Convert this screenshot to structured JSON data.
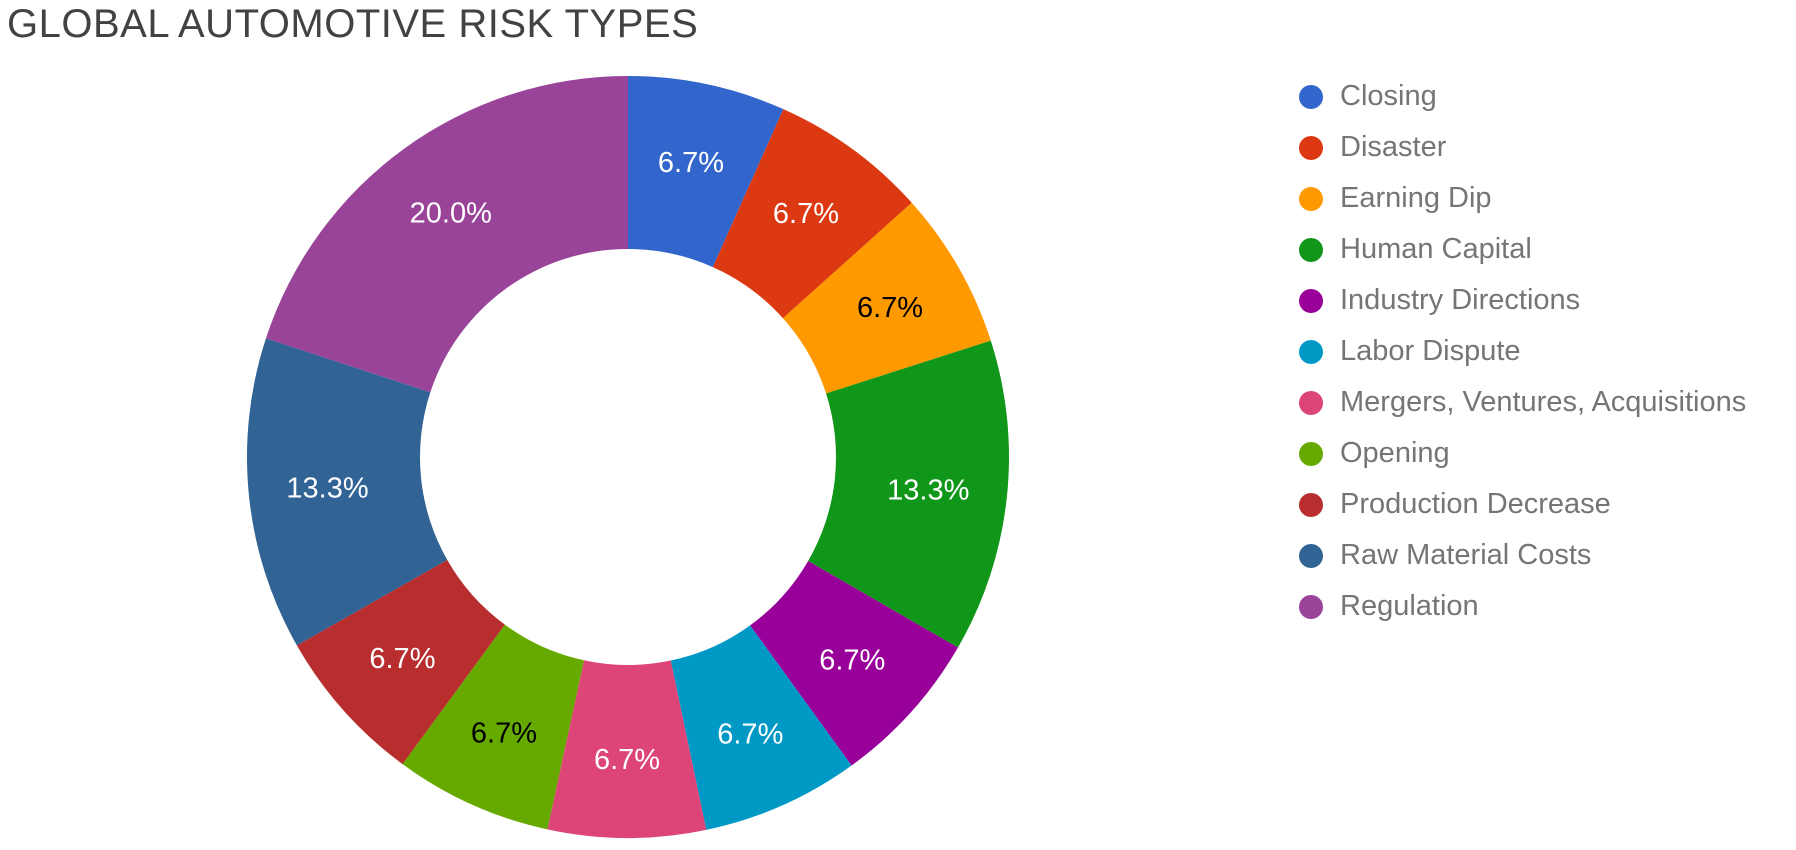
{
  "title": "GLOBAL AUTOMOTIVE RISK TYPES",
  "colors": {
    "background": "#ffffff",
    "title_text": "#424242",
    "legend_text": "#757575"
  },
  "chart_data": {
    "type": "pie",
    "donut": true,
    "pie_hole": 0.55,
    "title": "GLOBAL AUTOMOTIVE RISK TYPES",
    "legend_position": "right",
    "legend_marker": "circle",
    "start_angle_deg": 0,
    "direction": "clockwise",
    "slices": [
      {
        "label": "Closing",
        "percent": 6.7,
        "display": "6.7%",
        "color": "#3366CC",
        "text_color": "#ffffff"
      },
      {
        "label": "Disaster",
        "percent": 6.7,
        "display": "6.7%",
        "color": "#DC3912",
        "text_color": "#ffffff"
      },
      {
        "label": "Earning Dip",
        "percent": 6.7,
        "display": "6.7%",
        "color": "#FF9900",
        "text_color": "#000000"
      },
      {
        "label": "Human Capital",
        "percent": 13.3,
        "display": "13.3%",
        "color": "#109618",
        "text_color": "#ffffff"
      },
      {
        "label": "Industry Directions",
        "percent": 6.7,
        "display": "6.7%",
        "color": "#990099",
        "text_color": "#ffffff"
      },
      {
        "label": "Labor Dispute",
        "percent": 6.7,
        "display": "6.7%",
        "color": "#0099C6",
        "text_color": "#ffffff"
      },
      {
        "label": "Mergers, Ventures, Acquisitions",
        "percent": 6.7,
        "display": "6.7%",
        "color": "#DD4477",
        "text_color": "#ffffff"
      },
      {
        "label": "Opening",
        "percent": 6.7,
        "display": "6.7%",
        "color": "#66AA00",
        "text_color": "#000000"
      },
      {
        "label": "Production Decrease",
        "percent": 6.7,
        "display": "6.7%",
        "color": "#B82E2E",
        "text_color": "#ffffff"
      },
      {
        "label": "Raw Material Costs",
        "percent": 13.3,
        "display": "13.3%",
        "color": "#316395",
        "text_color": "#ffffff"
      },
      {
        "label": "Regulation",
        "percent": 20.0,
        "display": "20.0%",
        "color": "#994499",
        "text_color": "#ffffff"
      }
    ]
  }
}
